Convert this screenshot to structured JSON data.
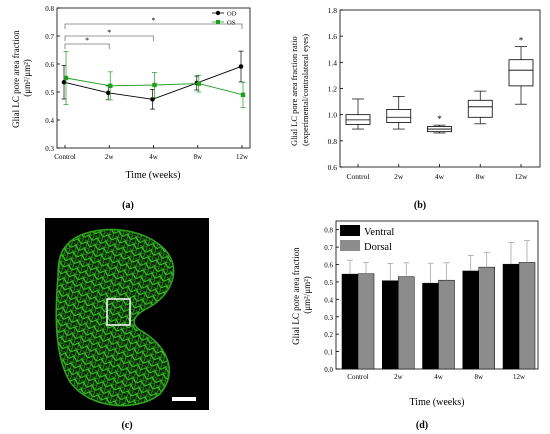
{
  "chart_data": [
    {
      "panel": "(a)",
      "type": "line",
      "xlabel": "Time (weeks)",
      "ylabel": "Glial LC pore area fraction (μm²/μm²)",
      "categories": [
        "Control",
        "2w",
        "4w",
        "8w",
        "12w"
      ],
      "ylim": [
        0.3,
        0.8
      ],
      "yticks": [
        "0.3",
        "0.4",
        "0.5",
        "0.6",
        "0.7",
        "0.8"
      ],
      "legend_position": "top-right",
      "series": [
        {
          "name": "OD",
          "color": "#000000",
          "values": [
            0.535,
            0.497,
            0.474,
            0.532,
            0.591
          ],
          "errors": [
            0.06,
            0.025,
            0.035,
            0.025,
            0.055
          ]
        },
        {
          "name": "OS",
          "color": "#1f9e1f",
          "values": [
            0.55,
            0.522,
            0.525,
            0.53,
            0.49
          ],
          "errors": [
            0.095,
            0.05,
            0.045,
            0.03,
            0.045
          ]
        }
      ],
      "significance": [
        {
          "from": "Control",
          "to": "2w",
          "label": "*"
        },
        {
          "from": "Control",
          "to": "4w",
          "label": "*"
        },
        {
          "from": "Control",
          "to": "12w",
          "label": "*"
        }
      ]
    },
    {
      "panel": "(b)",
      "type": "box",
      "xlabel": "",
      "ylabel": "Glial LC pore area fraction ratio (experimental/contralateral eyes)",
      "categories": [
        "Control",
        "2w",
        "4w",
        "8w",
        "12w"
      ],
      "ylim": [
        0.6,
        1.8
      ],
      "yticks": [
        "0.6",
        "0.8",
        "1.0",
        "1.2",
        "1.4",
        "1.6",
        "1.8"
      ],
      "boxes": [
        {
          "min": 0.89,
          "q1": 0.925,
          "median": 0.96,
          "q3": 1.0,
          "max": 1.12,
          "mark": ""
        },
        {
          "min": 0.89,
          "q1": 0.94,
          "median": 0.98,
          "q3": 1.04,
          "max": 1.14,
          "mark": ""
        },
        {
          "min": 0.86,
          "q1": 0.87,
          "median": 0.89,
          "q3": 0.91,
          "max": 0.92,
          "mark": "*"
        },
        {
          "min": 0.93,
          "q1": 0.98,
          "median": 1.06,
          "q3": 1.11,
          "max": 1.18,
          "mark": ""
        },
        {
          "min": 1.08,
          "q1": 1.22,
          "median": 1.34,
          "q3": 1.42,
          "max": 1.52,
          "mark": "*"
        }
      ]
    },
    {
      "panel": "(c)",
      "type": "image",
      "description": "fluorescence micrograph of the lamina cribrosa"
    },
    {
      "panel": "(d)",
      "type": "bar",
      "xlabel": "Time (weeks)",
      "ylabel": "Glial LC pore area fraction (μm²/μm²)",
      "categories": [
        "Control",
        "2w",
        "4w",
        "8w",
        "12w"
      ],
      "ylim": [
        0.0,
        0.85
      ],
      "yticks": [
        "0.0",
        "0.1",
        "0.2",
        "0.3",
        "0.4",
        "0.5",
        "0.6",
        "0.7",
        "0.8"
      ],
      "legend_position": "top-left",
      "series": [
        {
          "name": "Ventral",
          "color": "#000000",
          "values": [
            0.545,
            0.507,
            0.493,
            0.563,
            0.602
          ],
          "errors": [
            0.08,
            0.1,
            0.115,
            0.09,
            0.125
          ]
        },
        {
          "name": "Dorsal",
          "color": "#8c8c8c",
          "values": [
            0.547,
            0.53,
            0.51,
            0.585,
            0.612
          ],
          "errors": [
            0.065,
            0.08,
            0.1,
            0.085,
            0.125
          ]
        }
      ]
    }
  ],
  "panel_labels": {
    "a": "(a)",
    "b": "(b)",
    "c": "(c)",
    "d": "(d)"
  }
}
